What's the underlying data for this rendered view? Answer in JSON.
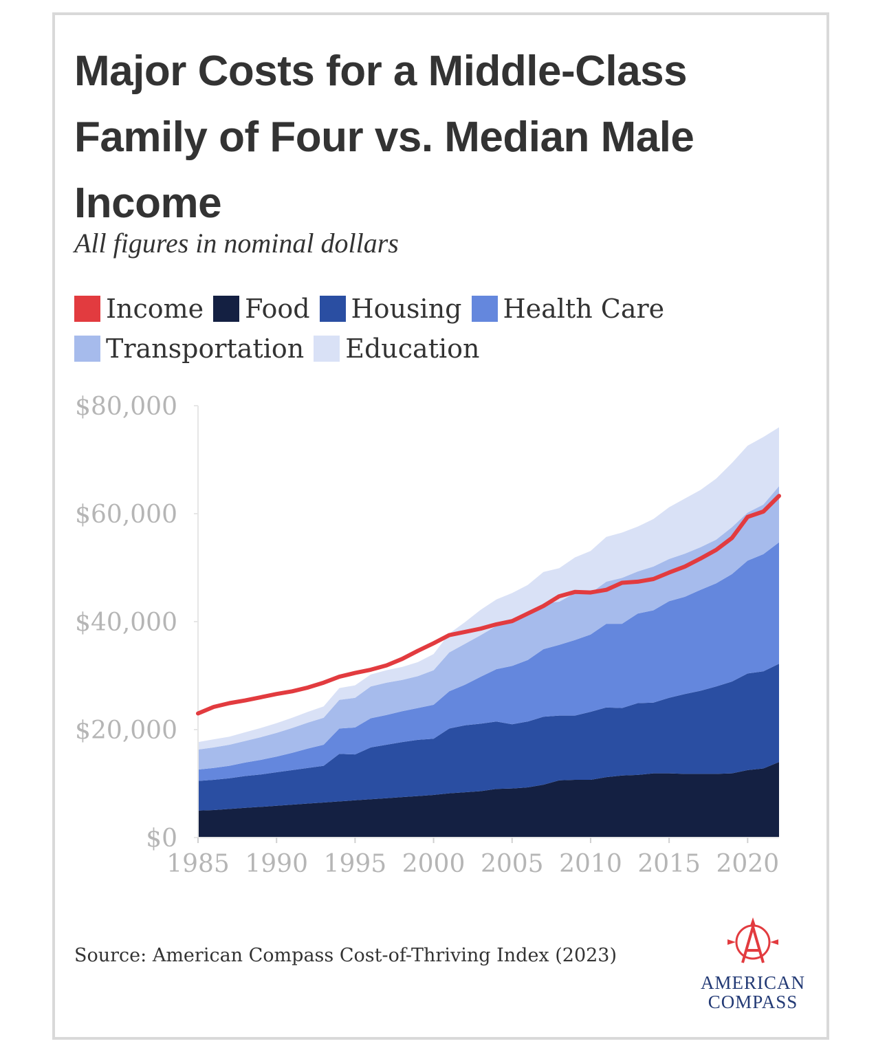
{
  "title": "Major Costs for a Middle-Class Family of Four vs. Median Male Income",
  "subtitle": "All figures in nominal dollars",
  "source": "Source: American Compass Cost-of-Thriving Index (2023)",
  "logo": {
    "line1": "AMERICAN",
    "line2": "COMPASS",
    "icon": "compass-a-icon"
  },
  "colors": {
    "income": "#e23b3f",
    "food": "#142042",
    "housing": "#2a4ea2",
    "health_care": "#6487dd",
    "transportation": "#a6bbec",
    "education": "#d9e1f6",
    "axis_text": "#b5b5b5",
    "title_text": "#333333"
  },
  "legend": [
    {
      "key": "income",
      "label": "Income"
    },
    {
      "key": "food",
      "label": "Food"
    },
    {
      "key": "housing",
      "label": "Housing"
    },
    {
      "key": "health_care",
      "label": "Health Care"
    },
    {
      "key": "transportation",
      "label": "Transportation"
    },
    {
      "key": "education",
      "label": "Education"
    }
  ],
  "chart_data": {
    "type": "area",
    "stacked": true,
    "x": [
      1985,
      1986,
      1987,
      1988,
      1989,
      1990,
      1991,
      1992,
      1993,
      1994,
      1995,
      1996,
      1997,
      1998,
      1999,
      2000,
      2001,
      2002,
      2003,
      2004,
      2005,
      2006,
      2007,
      2008,
      2009,
      2010,
      2011,
      2012,
      2013,
      2014,
      2015,
      2016,
      2017,
      2018,
      2019,
      2020,
      2021,
      2022
    ],
    "xticks": [
      1985,
      1990,
      1995,
      2000,
      2005,
      2010,
      2015,
      2020
    ],
    "xtick_labels": [
      "1985",
      "1990",
      "1995",
      "2000",
      "2005",
      "2010",
      "2015",
      "2020"
    ],
    "ylim": [
      0,
      80000
    ],
    "yticks": [
      0,
      20000,
      40000,
      60000,
      80000
    ],
    "ytick_labels": [
      "$0",
      "$20,000",
      "$40,000",
      "$60,000",
      "$80,000"
    ],
    "legend_position": "top",
    "series": [
      {
        "name": "Food",
        "key": "food",
        "values": [
          5000,
          5100,
          5300,
          5500,
          5700,
          5900,
          6100,
          6300,
          6500,
          6700,
          6900,
          7100,
          7300,
          7500,
          7700,
          7900,
          8200,
          8400,
          8600,
          9000,
          9100,
          9300,
          9800,
          10600,
          10700,
          10700,
          11200,
          11500,
          11600,
          11900,
          11900,
          11800,
          11800,
          11800,
          11900,
          12500,
          12800,
          14000
        ]
      },
      {
        "name": "Housing",
        "key": "housing",
        "values": [
          5500,
          5600,
          5700,
          5900,
          6000,
          6200,
          6400,
          6600,
          6800,
          8800,
          8500,
          9600,
          9900,
          10200,
          10400,
          10400,
          12000,
          12400,
          12500,
          12500,
          11900,
          12200,
          12600,
          12000,
          11900,
          12600,
          12900,
          12500,
          13300,
          13100,
          14000,
          14800,
          15400,
          16200,
          17000,
          17900,
          18000,
          18200
        ]
      },
      {
        "name": "Health Care",
        "key": "health_care",
        "values": [
          2100,
          2200,
          2300,
          2500,
          2700,
          2900,
          3200,
          3600,
          3900,
          4700,
          5000,
          5400,
          5500,
          5700,
          5900,
          6300,
          6900,
          7500,
          8700,
          9700,
          10800,
          11400,
          12500,
          13100,
          14000,
          14300,
          15500,
          15600,
          16600,
          17100,
          17900,
          18000,
          18700,
          19100,
          19900,
          20900,
          21700,
          22500
        ]
      },
      {
        "name": "Transportation",
        "key": "transportation",
        "values": [
          3700,
          3800,
          3900,
          4000,
          4200,
          4400,
          4600,
          4800,
          5000,
          5300,
          5500,
          5900,
          6000,
          5800,
          5900,
          6400,
          7200,
          7600,
          7700,
          8000,
          8100,
          8300,
          8500,
          8000,
          8700,
          7700,
          7800,
          8500,
          7800,
          8100,
          7800,
          8000,
          7900,
          8100,
          8700,
          8900,
          9200,
          10400
        ]
      },
      {
        "name": "Education",
        "key": "education",
        "values": [
          1400,
          1500,
          1500,
          1600,
          1700,
          1800,
          1900,
          2000,
          2100,
          2200,
          2300,
          2200,
          2300,
          2400,
          2600,
          3000,
          3500,
          4000,
          4700,
          4900,
          5400,
          5600,
          5800,
          6200,
          6600,
          7800,
          8300,
          8400,
          8300,
          8800,
          9600,
          10200,
          10600,
          11300,
          11900,
          12400,
          12500,
          10900
        ]
      }
    ],
    "line_series": [
      {
        "name": "Income",
        "key": "income",
        "values": [
          23000,
          24200,
          24900,
          25400,
          26000,
          26600,
          27100,
          27800,
          28700,
          29800,
          30500,
          31100,
          31900,
          33100,
          34600,
          36000,
          37500,
          38100,
          38700,
          39500,
          40100,
          41500,
          42900,
          44700,
          45500,
          45400,
          45900,
          47200,
          47400,
          47900,
          49100,
          50200,
          51700,
          53300,
          55500,
          59400,
          60400,
          63300
        ]
      }
    ]
  }
}
